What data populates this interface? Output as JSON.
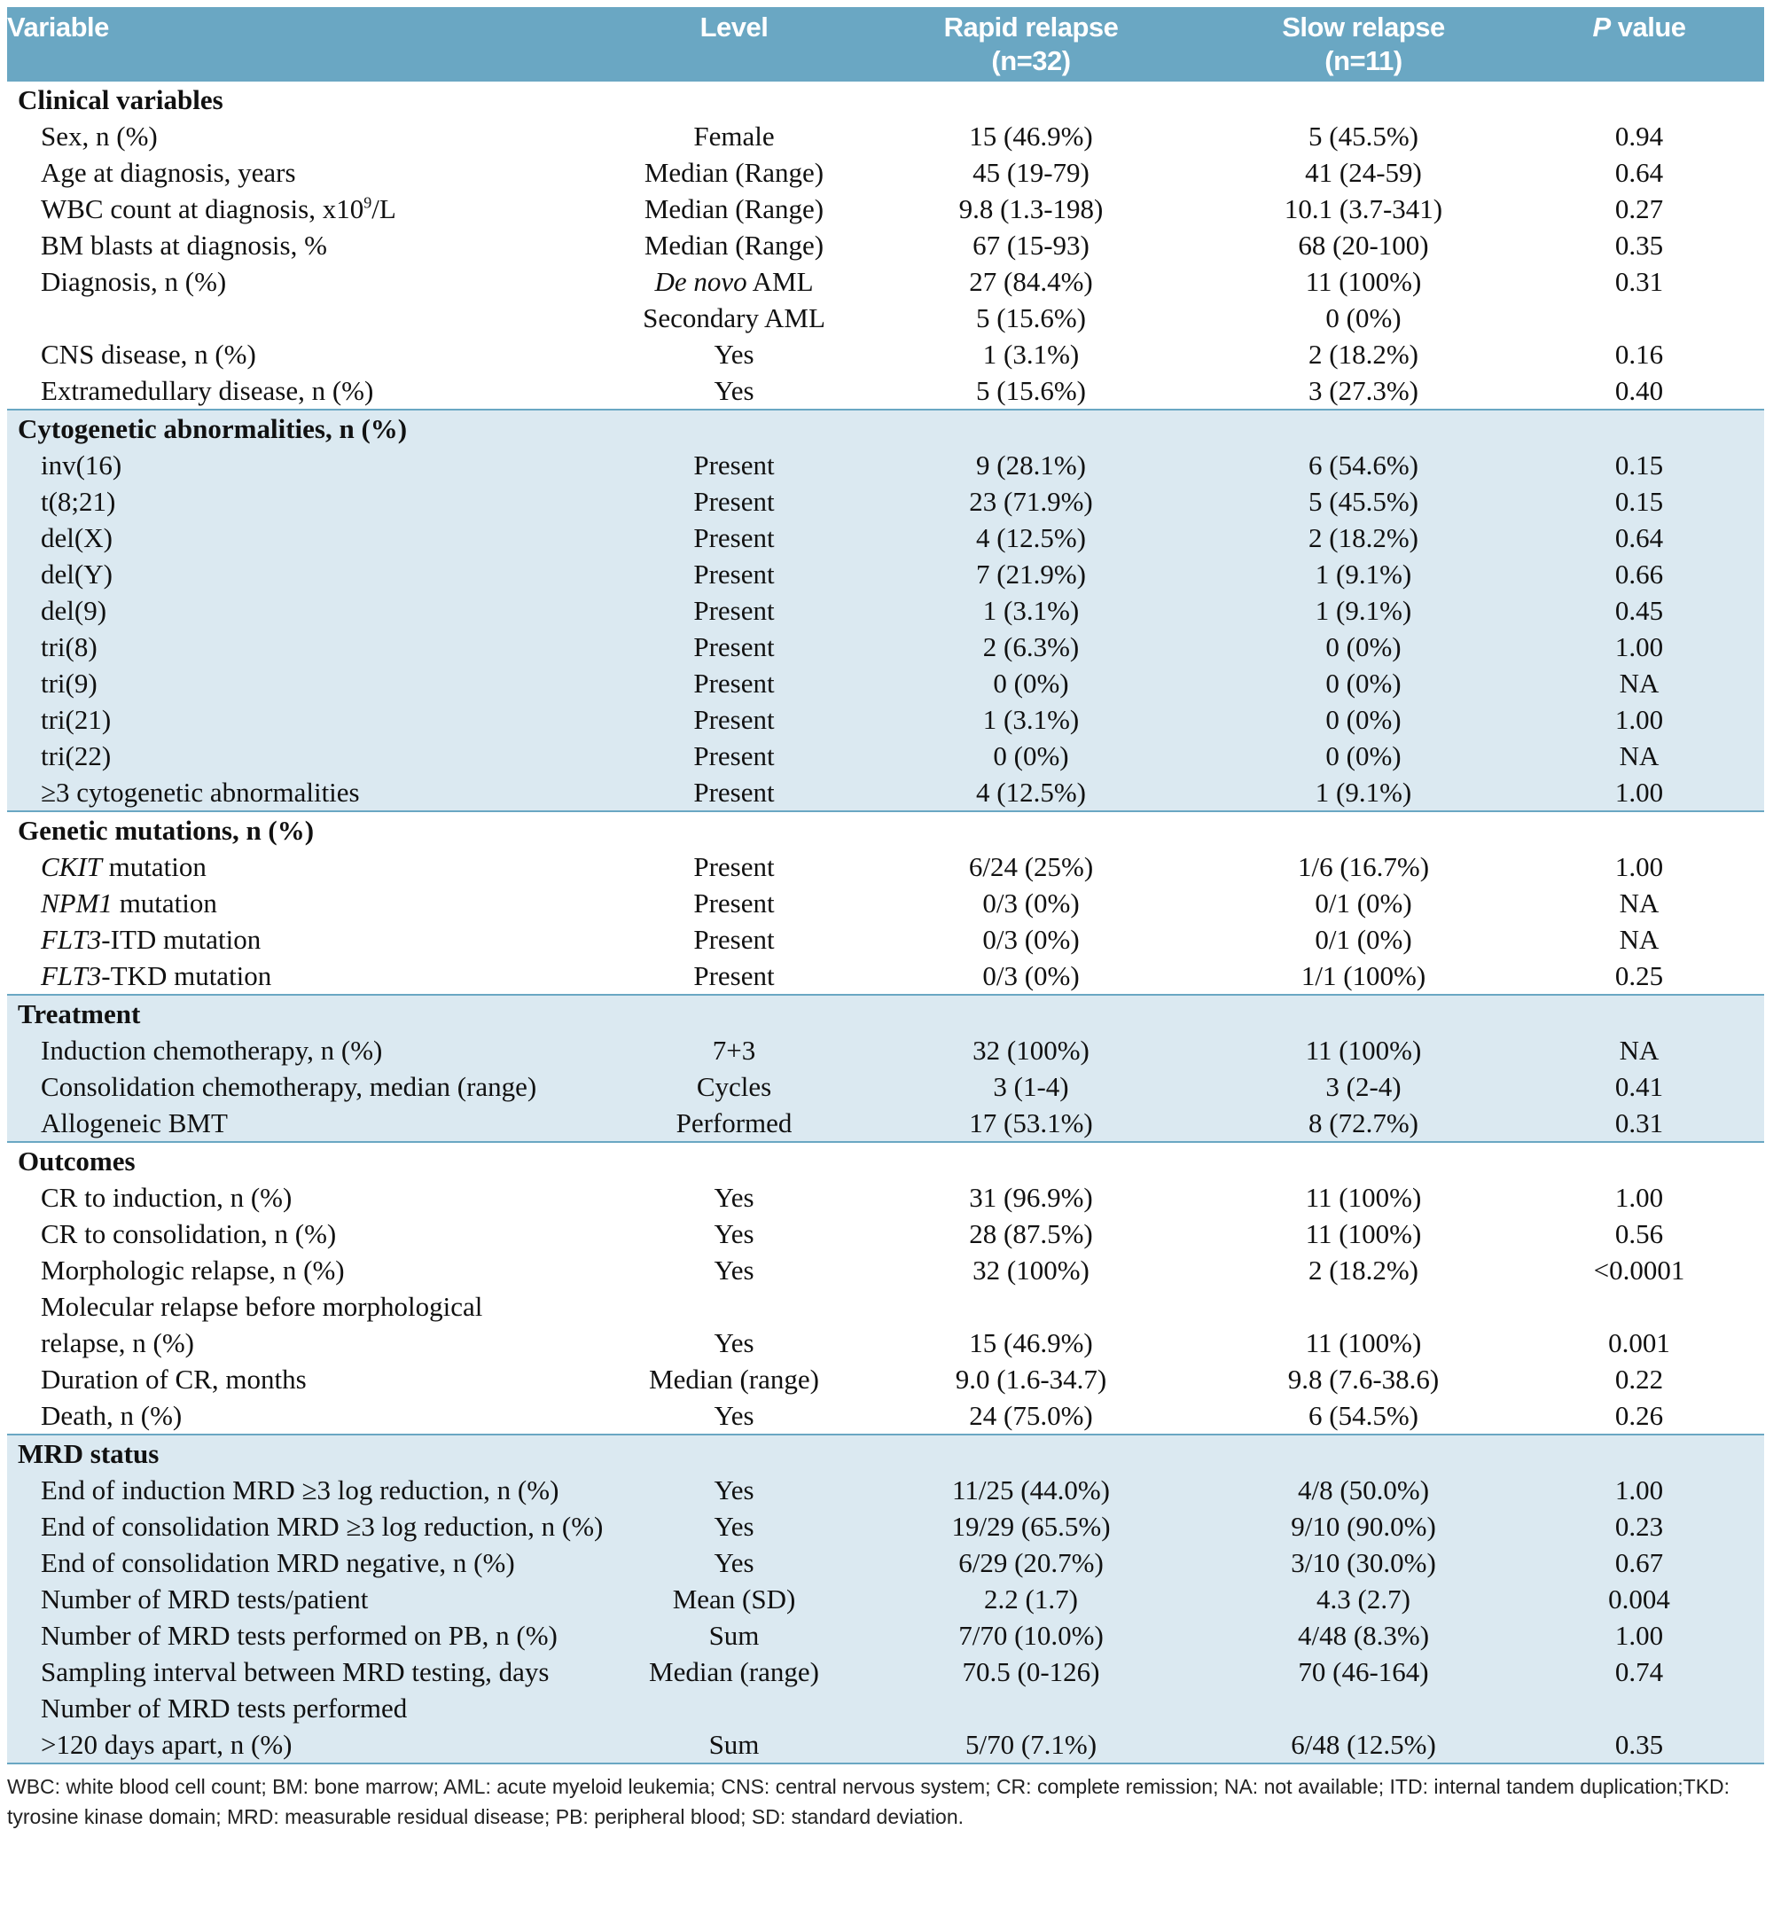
{
  "header": {
    "variable": "Variable",
    "level": "Level",
    "rapid_line1": "Rapid relapse",
    "rapid_line2": "(n=32)",
    "slow_line1": "Slow relapse",
    "slow_line2": "(n=11)",
    "p_italic": "P",
    "p_rest": " value"
  },
  "sections": {
    "clinical": {
      "title": "Clinical variables",
      "rows": [
        {
          "variable": "Sex, n (%)",
          "level": "Female",
          "rapid": "15 (46.9%)",
          "slow": "5 (45.5%)",
          "p": "0.94"
        },
        {
          "variable": "Age at diagnosis, years",
          "level": "Median (Range)",
          "rapid": "45 (19-79)",
          "slow": "41 (24-59)",
          "p": "0.64"
        },
        {
          "variable_prefix": "WBC count at diagnosis, x10",
          "variable_sup": "9",
          "variable_suffix": "/L",
          "level": "Median (Range)",
          "rapid": "9.8 (1.3-198)",
          "slow": "10.1 (3.7-341)",
          "p": "0.27"
        },
        {
          "variable": "BM blasts at diagnosis, %",
          "level": "Median (Range)",
          "rapid": "67 (15-93)",
          "slow": "68 (20-100)",
          "p": "0.35"
        },
        {
          "variable": "Diagnosis, n (%)",
          "level_italic": "De novo",
          "level_rest": " AML",
          "rapid": "27 (84.4%)",
          "slow": "11 (100%)",
          "p": "0.31"
        },
        {
          "variable": "",
          "level": "Secondary AML",
          "rapid": "5 (15.6%)",
          "slow": "0 (0%)",
          "p": ""
        },
        {
          "variable": "CNS disease, n (%)",
          "level": "Yes",
          "rapid": "1 (3.1%)",
          "slow": "2 (18.2%)",
          "p": "0.16"
        },
        {
          "variable": "Extramedullary disease, n (%)",
          "level": "Yes",
          "rapid": "5 (15.6%)",
          "slow": "3 (27.3%)",
          "p": "0.40"
        }
      ]
    },
    "cytogenetic": {
      "title": "Cytogenetic abnormalities, n (%)",
      "rows": [
        {
          "variable": "inv(16)",
          "level": "Present",
          "rapid": "9 (28.1%)",
          "slow": "6 (54.6%)",
          "p": "0.15"
        },
        {
          "variable": "t(8;21)",
          "level": "Present",
          "rapid": "23 (71.9%)",
          "slow": "5 (45.5%)",
          "p": "0.15"
        },
        {
          "variable": "del(X)",
          "level": "Present",
          "rapid": "4 (12.5%)",
          "slow": "2 (18.2%)",
          "p": "0.64"
        },
        {
          "variable": "del(Y)",
          "level": "Present",
          "rapid": "7 (21.9%)",
          "slow": "1 (9.1%)",
          "p": "0.66"
        },
        {
          "variable": "del(9)",
          "level": "Present",
          "rapid": "1 (3.1%)",
          "slow": "1 (9.1%)",
          "p": "0.45"
        },
        {
          "variable": "tri(8)",
          "level": "Present",
          "rapid": "2 (6.3%)",
          "slow": "0 (0%)",
          "p": "1.00"
        },
        {
          "variable": "tri(9)",
          "level": "Present",
          "rapid": "0 (0%)",
          "slow": "0 (0%)",
          "p": "NA"
        },
        {
          "variable": "tri(21)",
          "level": "Present",
          "rapid": "1 (3.1%)",
          "slow": "0 (0%)",
          "p": "1.00"
        },
        {
          "variable": "tri(22)",
          "level": "Present",
          "rapid": "0 (0%)",
          "slow": "0 (0%)",
          "p": "NA"
        },
        {
          "variable": "≥3 cytogenetic abnormalities",
          "level": "Present",
          "rapid": "4 (12.5%)",
          "slow": "1 (9.1%)",
          "p": "1.00"
        }
      ]
    },
    "genetic": {
      "title": "Genetic mutations, n (%)",
      "rows": [
        {
          "gene": "CKIT",
          "variable_rest": " mutation",
          "level": "Present",
          "rapid": "6/24 (25%)",
          "slow": "1/6 (16.7%)",
          "p": "1.00"
        },
        {
          "gene": "NPM1",
          "variable_rest": " mutation",
          "level": "Present",
          "rapid": "0/3 (0%)",
          "slow": "0/1 (0%)",
          "p": "NA"
        },
        {
          "gene": "FLT3",
          "variable_rest": "-ITD mutation",
          "level": "Present",
          "rapid": "0/3 (0%)",
          "slow": "0/1 (0%)",
          "p": "NA"
        },
        {
          "gene": "FLT3",
          "variable_rest": "-TKD mutation",
          "level": "Present",
          "rapid": "0/3 (0%)",
          "slow": "1/1 (100%)",
          "p": "0.25"
        }
      ]
    },
    "treatment": {
      "title": "Treatment",
      "rows": [
        {
          "variable": "Induction chemotherapy, n (%)",
          "level": "7+3",
          "rapid": "32 (100%)",
          "slow": "11 (100%)",
          "p": "NA"
        },
        {
          "variable": "Consolidation chemotherapy, median (range)",
          "level": "Cycles",
          "rapid": "3 (1-4)",
          "slow": "3 (2-4)",
          "p": "0.41"
        },
        {
          "variable": "Allogeneic BMT",
          "level": "Performed",
          "rapid": "17 (53.1%)",
          "slow": "8 (72.7%)",
          "p": "0.31"
        }
      ]
    },
    "outcomes": {
      "title": "Outcomes",
      "rows": [
        {
          "variable": "CR to induction, n (%)",
          "level": "Yes",
          "rapid": "31 (96.9%)",
          "slow": "11 (100%)",
          "p": "1.00"
        },
        {
          "variable": "CR to consolidation, n (%)",
          "level": "Yes",
          "rapid": "28 (87.5%)",
          "slow": "11 (100%)",
          "p": "0.56"
        },
        {
          "variable": "Morphologic relapse, n (%)",
          "level": "Yes",
          "rapid": "32 (100%)",
          "slow": "2 (18.2%)",
          "p": "<0.0001"
        },
        {
          "variable": "Molecular relapse before morphological",
          "level": "",
          "rapid": "",
          "slow": "",
          "p": ""
        },
        {
          "variable": "relapse, n (%)",
          "level": "Yes",
          "rapid": "15 (46.9%)",
          "slow": "11 (100%)",
          "p": "0.001"
        },
        {
          "variable": "Duration of CR, months",
          "level": "Median (range)",
          "rapid": "9.0 (1.6-34.7)",
          "slow": "9.8 (7.6-38.6)",
          "p": "0.22"
        },
        {
          "variable": "Death, n (%)",
          "level": "Yes",
          "rapid": "24 (75.0%)",
          "slow": "6 (54.5%)",
          "p": "0.26"
        }
      ]
    },
    "mrd": {
      "title": "MRD status",
      "rows": [
        {
          "variable": "End of induction MRD ≥3 log reduction, n (%)",
          "level": "Yes",
          "rapid": "11/25 (44.0%)",
          "slow": "4/8 (50.0%)",
          "p": "1.00"
        },
        {
          "variable": "End of consolidation MRD ≥3 log reduction, n (%)",
          "level": "Yes",
          "rapid": "19/29 (65.5%)",
          "slow": "9/10 (90.0%)",
          "p": "0.23"
        },
        {
          "variable": "End of consolidation MRD negative, n (%)",
          "level": "Yes",
          "rapid": "6/29 (20.7%)",
          "slow": "3/10 (30.0%)",
          "p": "0.67"
        },
        {
          "variable": "Number of MRD tests/patient",
          "level": "Mean (SD)",
          "rapid": "2.2 (1.7)",
          "slow": "4.3 (2.7)",
          "p": "0.004"
        },
        {
          "variable": "Number of MRD tests performed on PB, n (%)",
          "level": "Sum",
          "rapid": "7/70 (10.0%)",
          "slow": "4/48 (8.3%)",
          "p": "1.00"
        },
        {
          "variable": "Sampling interval between MRD testing, days",
          "level": "Median (range)",
          "rapid": "70.5 (0-126)",
          "slow": "70 (46-164)",
          "p": "0.74"
        },
        {
          "variable": "Number of MRD tests performed",
          "level": "",
          "rapid": "",
          "slow": "",
          "p": ""
        },
        {
          "variable": ">120 days apart, n (%)",
          "level": "Sum",
          "rapid": "5/70 (7.1%)",
          "slow": "6/48 (12.5%)",
          "p": "0.35"
        }
      ]
    }
  },
  "footnote": "WBC: white blood cell count; BM: bone marrow; AML: acute myeloid leukemia; CNS: central nervous system; CR: complete remission; NA: not available; ITD: internal tandem duplication;TKD: tyrosine kinase domain; MRD: measurable residual disease; PB: peripheral blood; SD: standard deviation.",
  "colors": {
    "header_bg": "#6aa7c3",
    "shade_bg": "#dbe9f1"
  }
}
